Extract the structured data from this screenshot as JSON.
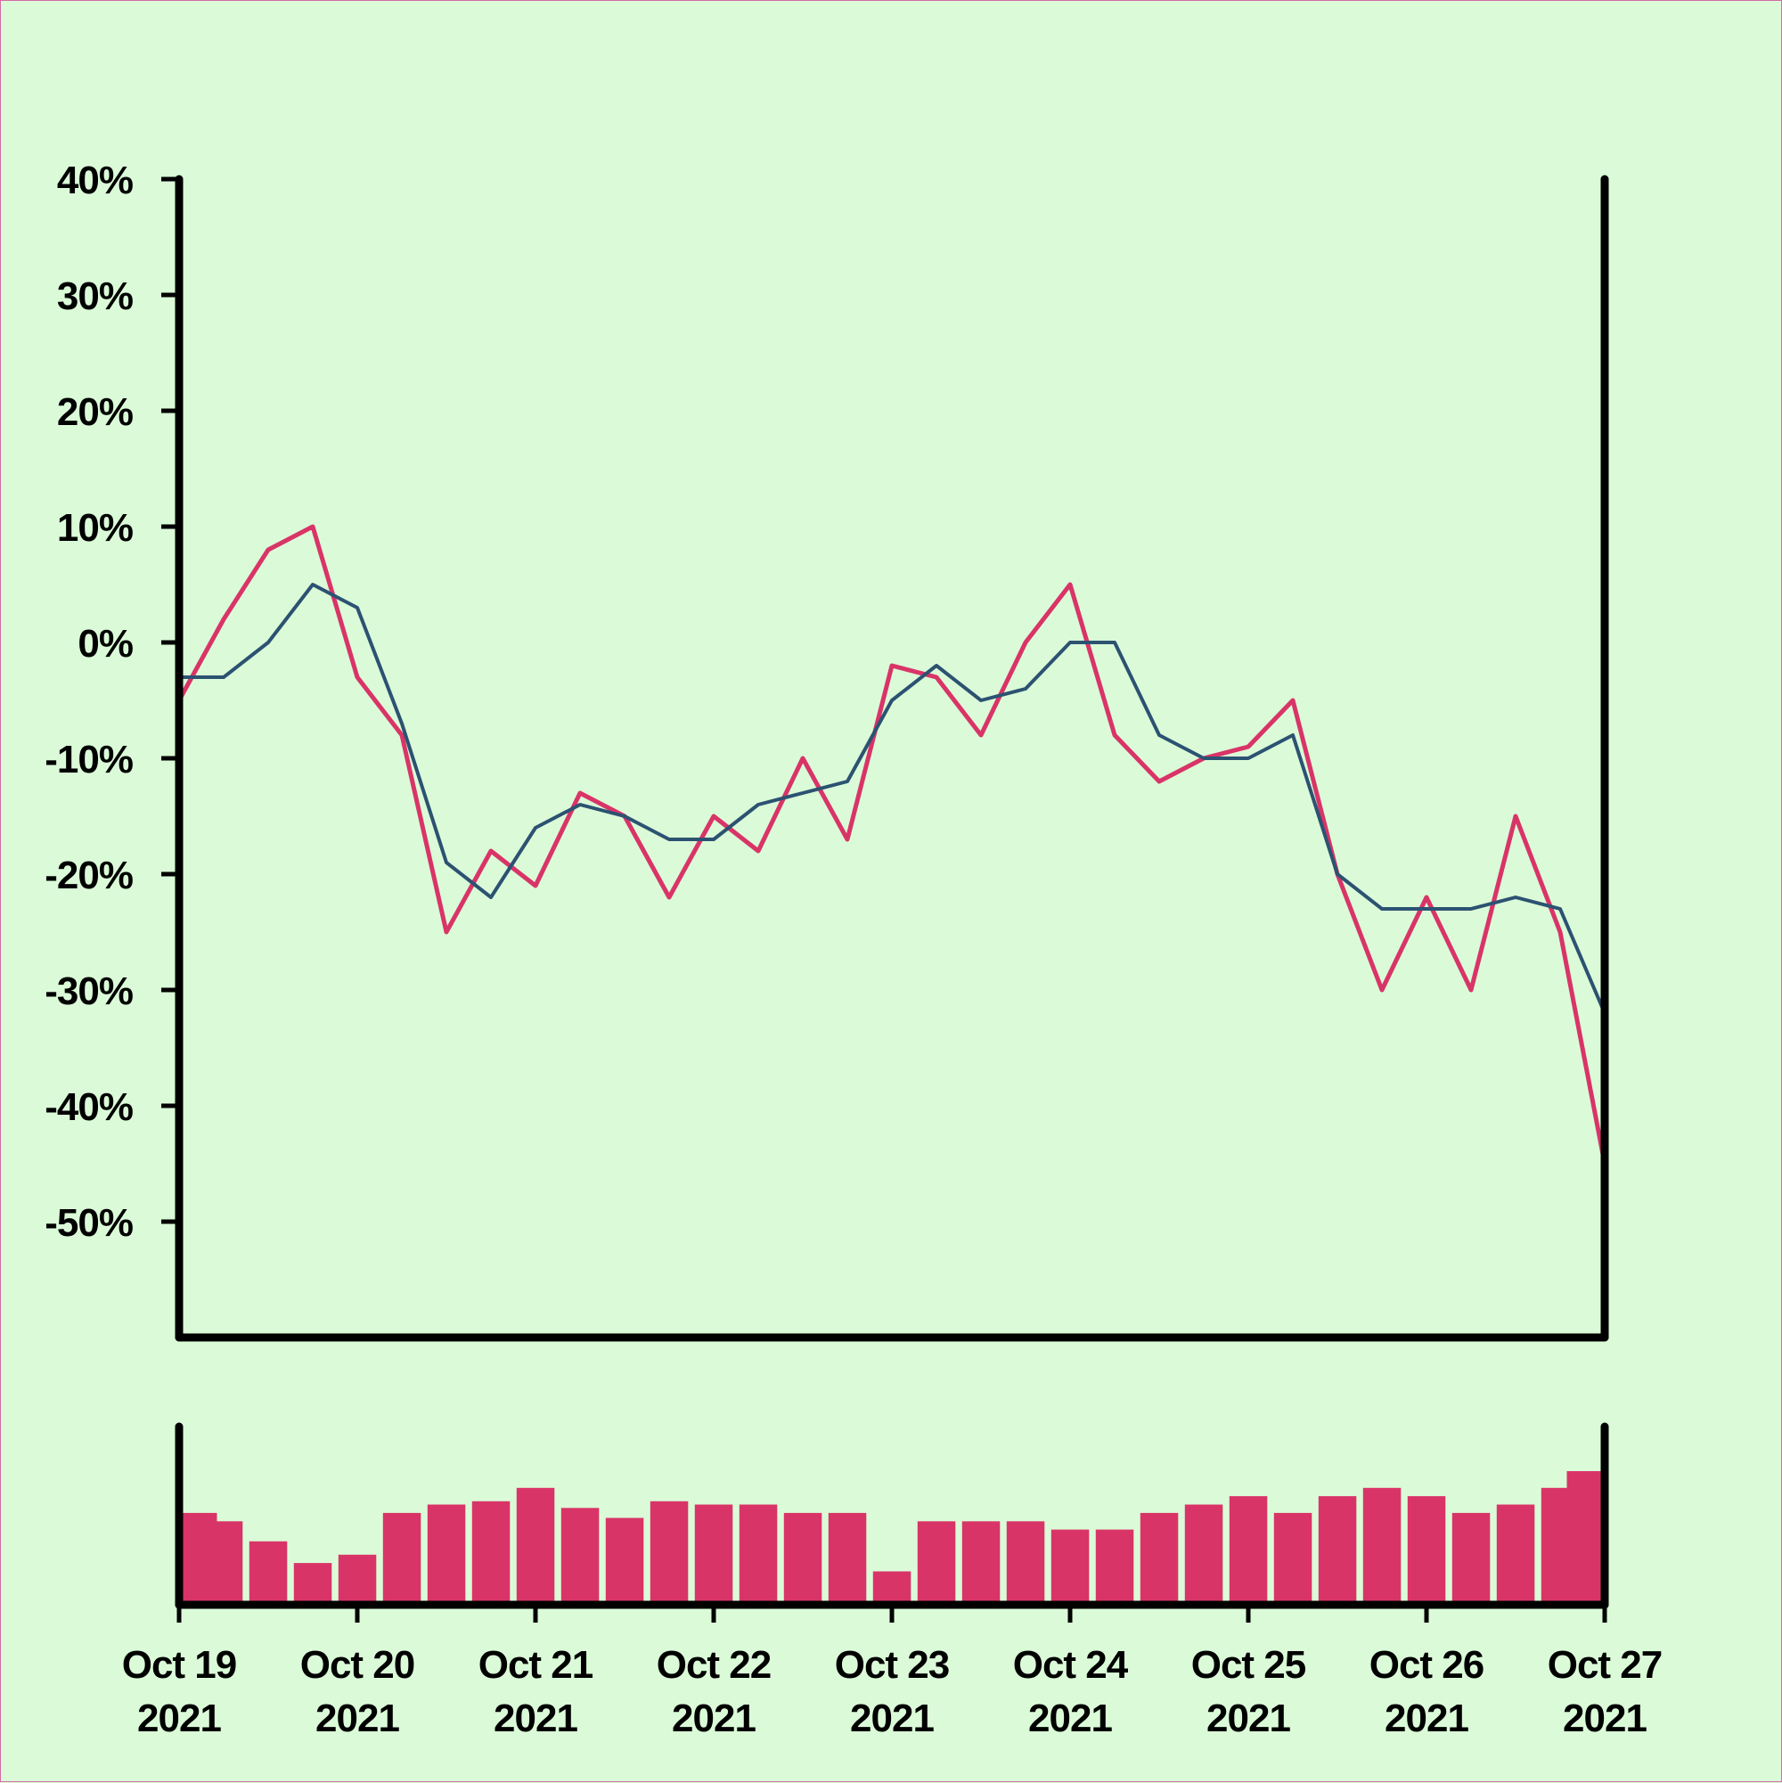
{
  "chart_data": [
    {
      "type": "line",
      "title": "",
      "xlabel": "",
      "ylabel": "",
      "x_range": [
        "2021-10-19",
        "2021-10-27"
      ],
      "ylim": [
        -60,
        40
      ],
      "y_unit": "%",
      "y_ticks": [
        40,
        30,
        20,
        10,
        0,
        -10,
        -20,
        -30,
        -40,
        -50
      ],
      "y_tick_labels": [
        "40%",
        "30%",
        "20%",
        "10%",
        "0%",
        "-10%",
        "-20%",
        "-30%",
        "-40%",
        "-50%"
      ],
      "grid": false,
      "series": [
        {
          "color": "#d93468",
          "x": [
            "2021-10-19",
            "2021-10-19 06:00",
            "2021-10-19 12:00",
            "2021-10-19 18:00",
            "2021-10-20",
            "2021-10-20 06:00",
            "2021-10-20 12:00",
            "2021-10-20 18:00",
            "2021-10-21",
            "2021-10-21 06:00",
            "2021-10-21 12:00",
            "2021-10-21 18:00",
            "2021-10-22",
            "2021-10-22 06:00",
            "2021-10-22 12:00",
            "2021-10-22 18:00",
            "2021-10-23",
            "2021-10-23 06:00",
            "2021-10-23 12:00",
            "2021-10-23 18:00",
            "2021-10-24",
            "2021-10-24 06:00",
            "2021-10-24 12:00",
            "2021-10-24 18:00",
            "2021-10-25",
            "2021-10-25 06:00",
            "2021-10-25 12:00",
            "2021-10-25 18:00",
            "2021-10-26",
            "2021-10-26 06:00",
            "2021-10-26 12:00",
            "2021-10-26 18:00",
            "2021-10-27"
          ],
          "values": [
            -5,
            2,
            8,
            10,
            -3,
            -8,
            -25,
            -18,
            -21,
            -13,
            -15,
            -22,
            -15,
            -18,
            -10,
            -17,
            -2,
            -3,
            -8,
            0,
            5,
            -8,
            -12,
            -10,
            -9,
            -5,
            -20,
            -30,
            -22,
            -30,
            -15,
            -25,
            -45
          ]
        },
        {
          "color": "#2c5272",
          "x": [
            "2021-10-19",
            "2021-10-19 06:00",
            "2021-10-19 12:00",
            "2021-10-19 18:00",
            "2021-10-20",
            "2021-10-20 06:00",
            "2021-10-20 12:00",
            "2021-10-20 18:00",
            "2021-10-21",
            "2021-10-21 06:00",
            "2021-10-21 12:00",
            "2021-10-21 18:00",
            "2021-10-22",
            "2021-10-22 06:00",
            "2021-10-22 12:00",
            "2021-10-22 18:00",
            "2021-10-23",
            "2021-10-23 06:00",
            "2021-10-23 12:00",
            "2021-10-23 18:00",
            "2021-10-24",
            "2021-10-24 06:00",
            "2021-10-24 12:00",
            "2021-10-24 18:00",
            "2021-10-25",
            "2021-10-25 06:00",
            "2021-10-25 12:00",
            "2021-10-25 18:00",
            "2021-10-26",
            "2021-10-26 06:00",
            "2021-10-26 12:00",
            "2021-10-26 18:00",
            "2021-10-27"
          ],
          "values": [
            -3,
            -3,
            0,
            5,
            3,
            -7,
            -19,
            -22,
            -16,
            -14,
            -15,
            -17,
            -17,
            -14,
            -13,
            -12,
            -5,
            -2,
            -5,
            -4,
            0,
            0,
            -8,
            -10,
            -10,
            -8,
            -20,
            -23,
            -23,
            -23,
            -22,
            -23,
            -32
          ]
        }
      ]
    },
    {
      "type": "bar",
      "title": "",
      "color": "#d93468",
      "x_range": [
        "2021-10-19",
        "2021-10-27"
      ],
      "x": [
        "2021-10-19",
        "2021-10-19 06:00",
        "2021-10-19 12:00",
        "2021-10-19 18:00",
        "2021-10-20",
        "2021-10-20 06:00",
        "2021-10-20 12:00",
        "2021-10-20 18:00",
        "2021-10-21",
        "2021-10-21 06:00",
        "2021-10-21 12:00",
        "2021-10-21 18:00",
        "2021-10-22",
        "2021-10-22 06:00",
        "2021-10-22 12:00",
        "2021-10-22 18:00",
        "2021-10-23",
        "2021-10-23 06:00",
        "2021-10-23 12:00",
        "2021-10-23 18:00",
        "2021-10-24",
        "2021-10-24 06:00",
        "2021-10-24 12:00",
        "2021-10-24 18:00",
        "2021-10-25",
        "2021-10-25 06:00",
        "2021-10-25 12:00",
        "2021-10-25 18:00",
        "2021-10-26",
        "2021-10-26 06:00",
        "2021-10-26 12:00",
        "2021-10-26 18:00",
        "2021-10-27"
      ],
      "values": [
        0.55,
        0.5,
        0.38,
        0.25,
        0.3,
        0.55,
        0.6,
        0.62,
        0.7,
        0.58,
        0.52,
        0.62,
        0.6,
        0.6,
        0.55,
        0.55,
        0.2,
        0.5,
        0.5,
        0.5,
        0.45,
        0.45,
        0.55,
        0.6,
        0.65,
        0.55,
        0.65,
        0.7,
        0.65,
        0.55,
        0.6,
        0.7,
        0.8
      ],
      "y_ticks": [],
      "grid": false
    }
  ],
  "x_axis": {
    "tick_labels": [
      {
        "month_day": "Oct 19",
        "year": "2021"
      },
      {
        "month_day": "Oct 20",
        "year": "2021"
      },
      {
        "month_day": "Oct 21",
        "year": "2021"
      },
      {
        "month_day": "Oct 22",
        "year": "2021"
      },
      {
        "month_day": "Oct 23",
        "year": "2021"
      },
      {
        "month_day": "Oct 24",
        "year": "2021"
      },
      {
        "month_day": "Oct 25",
        "year": "2021"
      },
      {
        "month_day": "Oct 26",
        "year": "2021"
      },
      {
        "month_day": "Oct 27",
        "year": "2021"
      }
    ]
  },
  "colors": {
    "background": "#dbfbd8",
    "border": "#d86aa8",
    "axis": "#000000",
    "price_line": "#d93468",
    "moving_average_line": "#2c5272",
    "volume_bars": "#d93468"
  }
}
